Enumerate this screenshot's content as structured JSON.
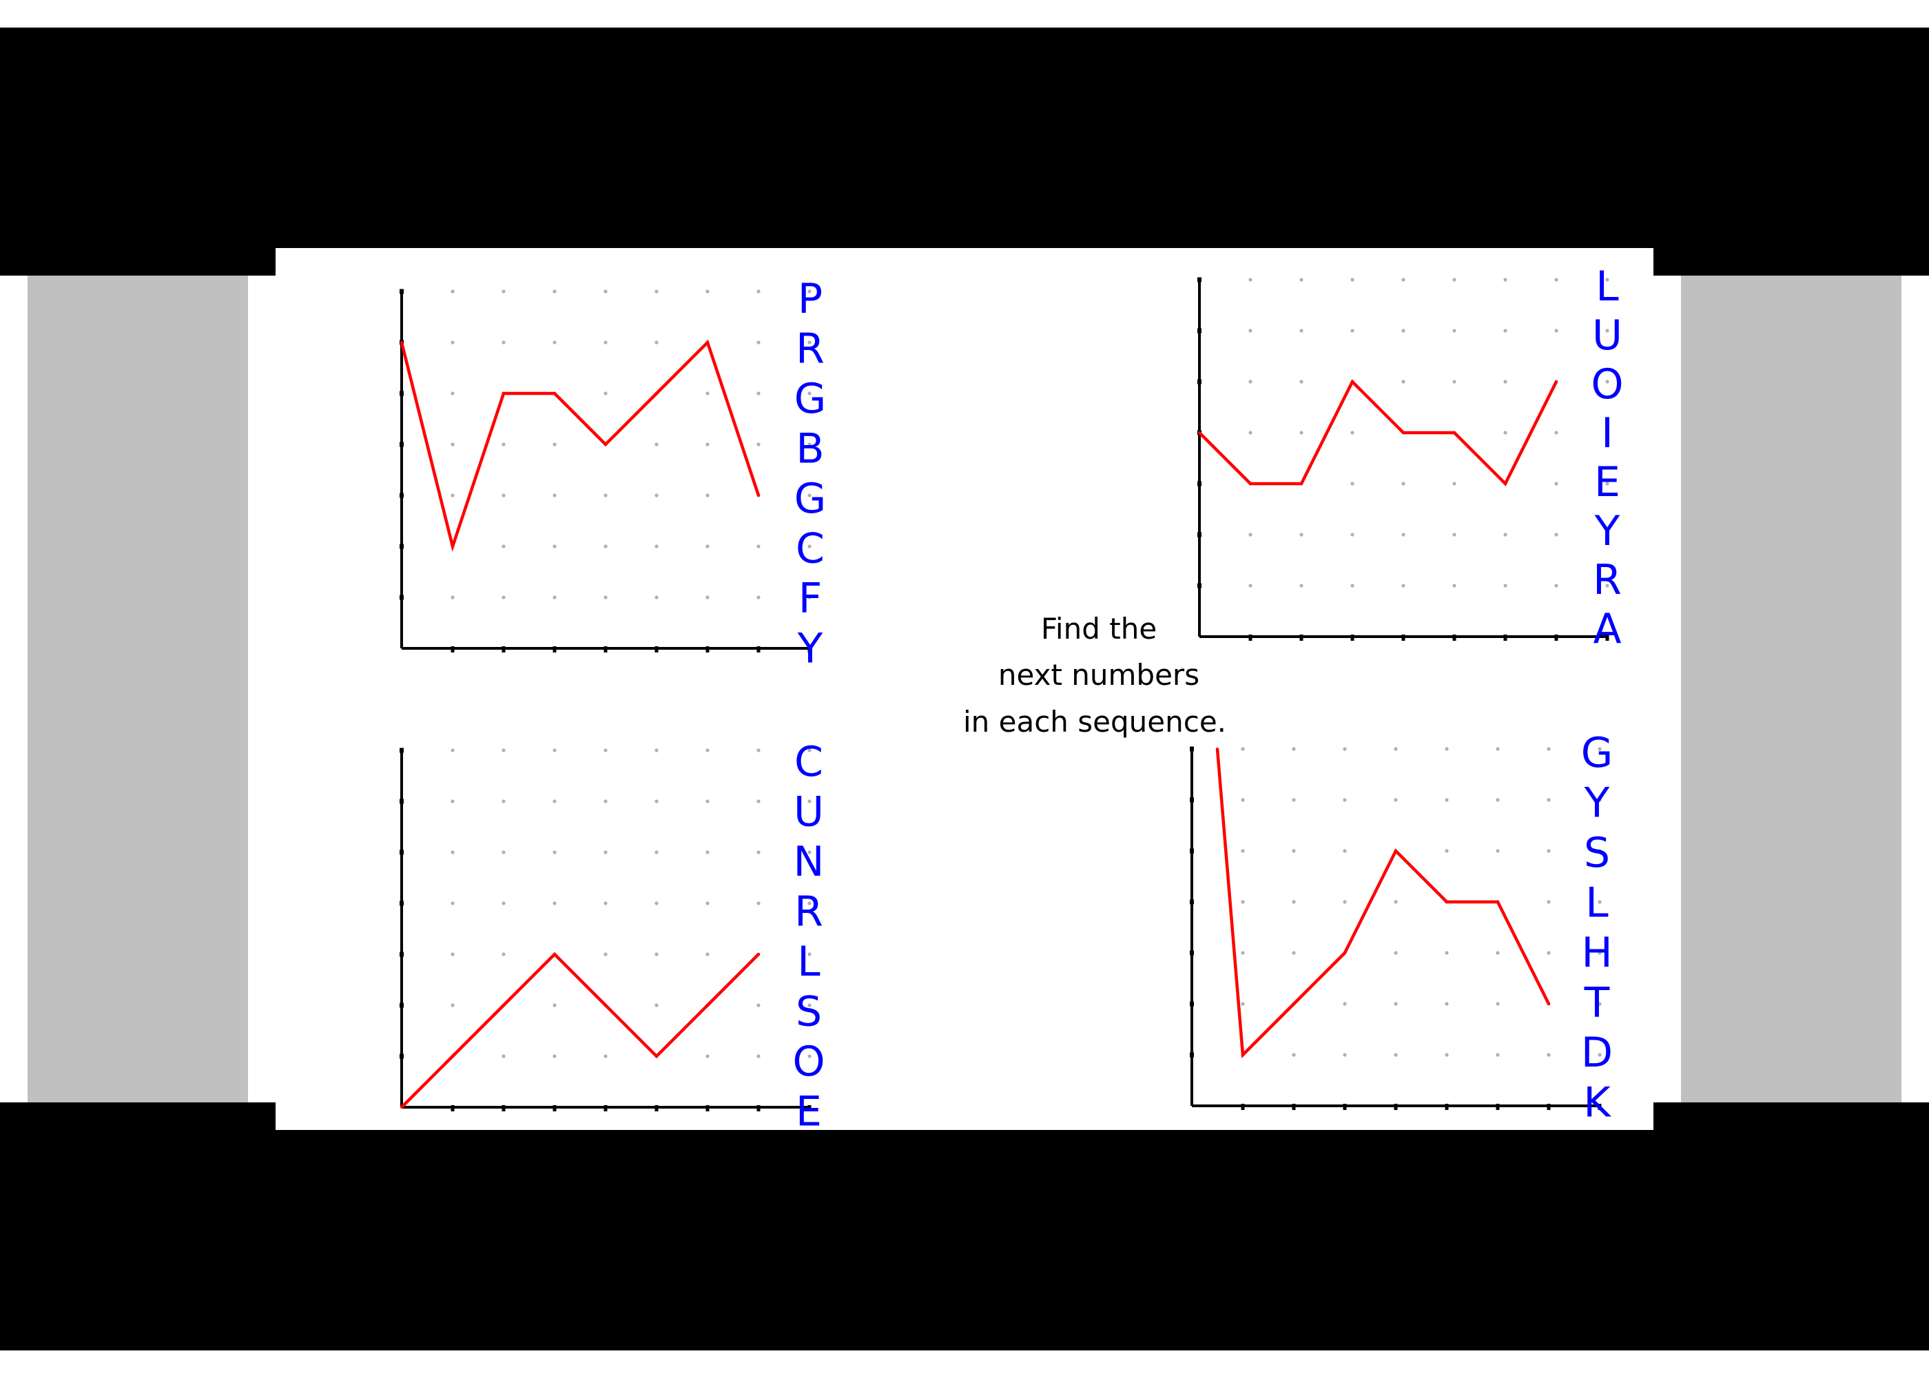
{
  "instruction": [
    "Find the",
    "next numbers",
    "in each sequence."
  ],
  "colors": {
    "line": "#ff0000",
    "letters": "#0000ff",
    "axis": "#000000",
    "grid_dot": "#b0b0b0",
    "side_panel": "#c0c0c0",
    "band": "#000000"
  },
  "chart_data": [
    {
      "type": "line",
      "title": "",
      "xlabel": "",
      "ylabel": "",
      "grid": "dots",
      "x": [
        0,
        1,
        2,
        3,
        4,
        5,
        6,
        7
      ],
      "values": [
        6,
        2,
        5,
        5,
        4,
        5,
        6,
        3
      ],
      "xlim": [
        0,
        8
      ],
      "ylim": [
        0,
        7
      ],
      "letters": [
        "P",
        "R",
        "G",
        "B",
        "G",
        "C",
        "F",
        "Y"
      ]
    },
    {
      "type": "line",
      "title": "",
      "xlabel": "",
      "ylabel": "",
      "grid": "dots",
      "x": [
        0,
        1,
        2,
        3,
        4,
        5,
        6,
        7
      ],
      "values": [
        4,
        3,
        3,
        5,
        4,
        4,
        3,
        5
      ],
      "xlim": [
        0,
        8
      ],
      "ylim": [
        0,
        7
      ],
      "letters": [
        "L",
        "U",
        "O",
        "I",
        "E",
        "Y",
        "R",
        "A"
      ]
    },
    {
      "type": "line",
      "title": "",
      "xlabel": "",
      "ylabel": "",
      "grid": "dots",
      "x": [
        0,
        1,
        2,
        3,
        4,
        5,
        6,
        7
      ],
      "values": [
        0,
        1,
        2,
        3,
        2,
        1,
        2,
        3
      ],
      "xlim": [
        0,
        8
      ],
      "ylim": [
        0,
        7
      ],
      "letters": [
        "C",
        "U",
        "N",
        "R",
        "L",
        "S",
        "O",
        "E"
      ]
    },
    {
      "type": "line",
      "title": "",
      "xlabel": "",
      "ylabel": "",
      "grid": "dots",
      "x": [
        0.5,
        1,
        2,
        3,
        4,
        5,
        6,
        7
      ],
      "values": [
        7,
        1,
        2,
        3,
        5,
        4,
        4,
        2
      ],
      "xlim": [
        0,
        8
      ],
      "ylim": [
        0,
        7
      ],
      "letters": [
        "G",
        "Y",
        "S",
        "L",
        "H",
        "T",
        "D",
        "K"
      ]
    }
  ]
}
